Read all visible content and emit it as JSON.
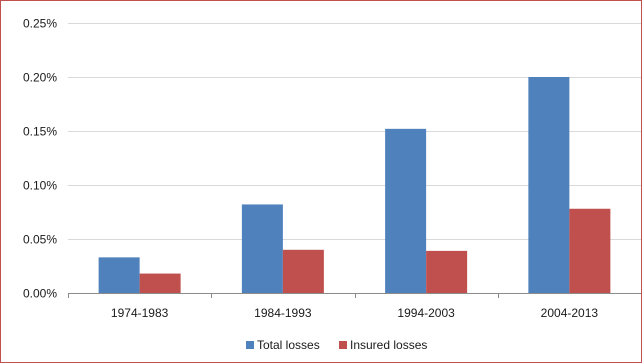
{
  "chart_data": {
    "type": "bar",
    "categories": [
      "1974-1983",
      "1984-1993",
      "1994-2003",
      "2004-2013"
    ],
    "series": [
      {
        "name": "Total losses",
        "values": [
          0.033,
          0.082,
          0.152,
          0.2
        ],
        "color": "#4f81bd"
      },
      {
        "name": "Insured losses",
        "values": [
          0.018,
          0.04,
          0.039,
          0.078
        ],
        "color": "#c0504d"
      }
    ],
    "y_ticks": [
      "0.00%",
      "0.05%",
      "0.10%",
      "0.15%",
      "0.20%",
      "0.25%"
    ],
    "y_tick_values": [
      0,
      0.05,
      0.1,
      0.15,
      0.2,
      0.25
    ],
    "ylim": [
      0,
      0.25
    ],
    "unit": "%",
    "grid": true,
    "legend": "bottom"
  }
}
